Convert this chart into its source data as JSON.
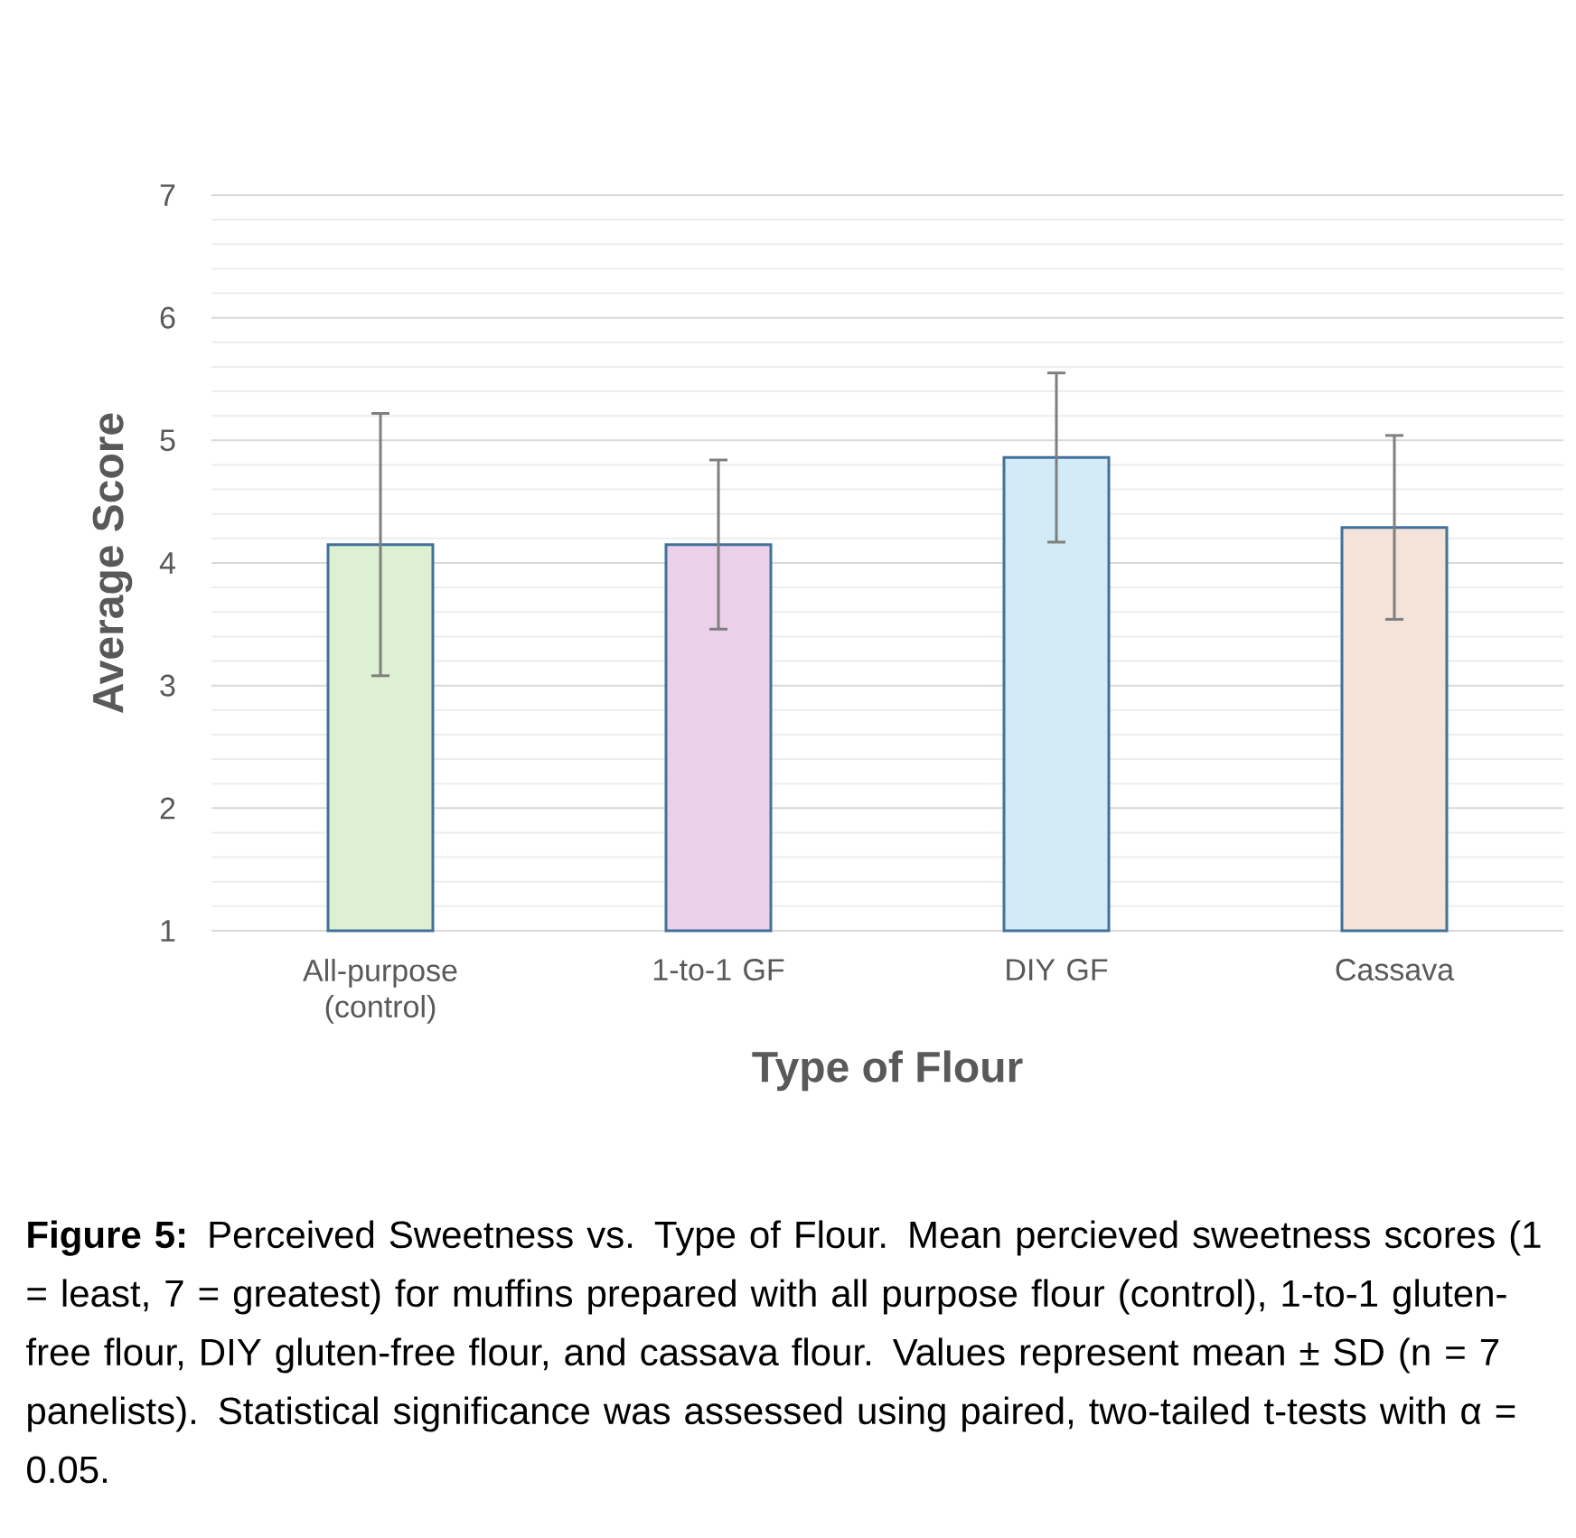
{
  "chart_data": {
    "type": "bar",
    "xlabel": "Type of Flour",
    "ylabel": "Average Score",
    "categories": [
      "All-purpose (control)",
      "1-to-1 GF",
      "DIY GF",
      "Cassava"
    ],
    "values": [
      4.15,
      4.15,
      4.86,
      4.29
    ],
    "errors": [
      1.07,
      0.69,
      0.69,
      0.75
    ],
    "colors": [
      "#ddf0d1",
      "#ebd0ea",
      "#d2ebf7",
      "#f4e3d8"
    ],
    "ylim": [
      1,
      7
    ],
    "yticks": [
      1,
      2,
      3,
      4,
      5,
      6,
      7
    ],
    "grid": "y",
    "annotations": [
      "**Figure 5:** Perceived Sweetness vs. Type of Flour. Mean percieved sweetness scores (1 = least, 7 = greatest) for muffins prepared with all purpose flour (control), 1-to-1 gluten-free flour, DIY gluten-free flour, and cassava flour. Values represent mean ± SD (n = 7 panelists). Statistical significance was assessed using paired, two-tailed t-tests with α = 0.05."
    ]
  }
}
